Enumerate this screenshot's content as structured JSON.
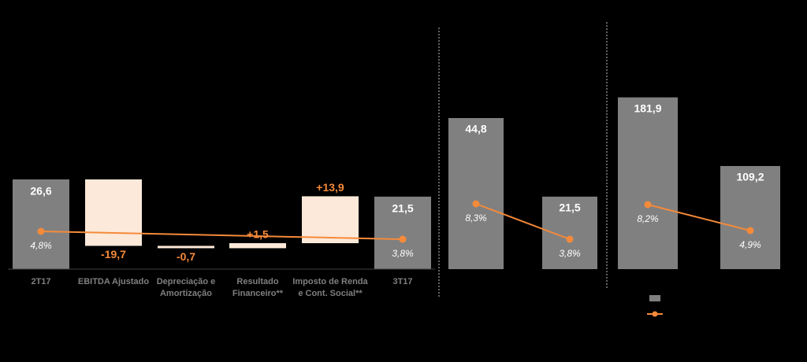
{
  "chart_data": [
    {
      "type": "waterfall",
      "categories": [
        [
          "2T17"
        ],
        [
          "EBITDA Ajustado"
        ],
        [
          "Depreciação e",
          "Amortização"
        ],
        [
          "Resultado",
          "Financeiro**"
        ],
        [
          "Imposto de Renda",
          "e Cont. Social**"
        ],
        [
          "3T17"
        ]
      ],
      "values": [
        26.6,
        -19.7,
        -0.7,
        1.5,
        13.9,
        21.5
      ],
      "value_labels": [
        "26,6",
        "-19,7",
        "-0,7",
        "+1,5",
        "+13,9",
        "21,5"
      ],
      "totals": [
        true,
        false,
        false,
        false,
        false,
        true
      ],
      "total_color": "#808080",
      "delta_color": "#fde9d9",
      "delta_label_color": "#f58a3a",
      "ylim": [
        0,
        70
      ],
      "y2lim": [
        0,
        30
      ],
      "line": {
        "color": "#f58a3a",
        "axis": "y2",
        "x": [
          0,
          5
        ],
        "values": [
          4.8,
          3.8
        ],
        "value_labels": [
          "4,8%",
          "3,8%"
        ]
      }
    },
    {
      "type": "bar",
      "values": [
        44.8,
        21.5
      ],
      "value_labels": [
        "44,8",
        "21,5"
      ],
      "color": "#808080",
      "ylim": [
        0,
        70
      ],
      "y2lim": [
        0,
        30
      ],
      "line": {
        "color": "#f58a3a",
        "axis": "y2",
        "x": [
          0,
          1
        ],
        "values": [
          8.3,
          3.8
        ],
        "value_labels": [
          "8,3%",
          "3,8%"
        ]
      }
    },
    {
      "type": "bar",
      "values": [
        181.9,
        109.2
      ],
      "value_labels": [
        "181,9",
        "109,2"
      ],
      "color": "#808080",
      "ylim": [
        0,
        250
      ],
      "y2lim": [
        0,
        30
      ],
      "line": {
        "color": "#f58a3a",
        "axis": "y2",
        "x": [
          0,
          1
        ],
        "values": [
          8.2,
          4.9
        ],
        "value_labels": [
          "8,2%",
          "4,9%"
        ]
      }
    }
  ]
}
